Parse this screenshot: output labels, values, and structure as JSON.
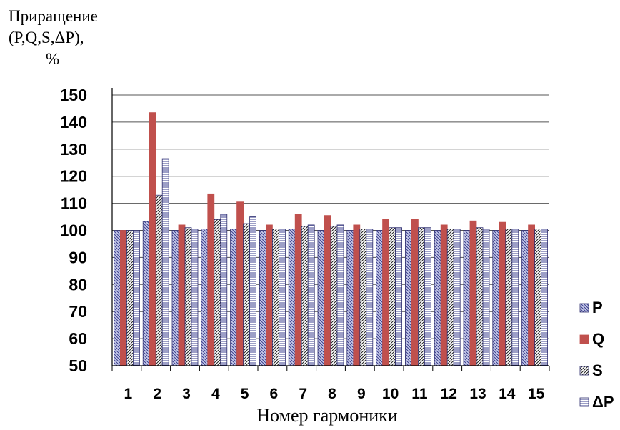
{
  "chart_data": {
    "type": "bar",
    "ylabel_lines": [
      "Приращение",
      "(P,Q,S,ΔP),",
      "%"
    ],
    "xlabel": "Номер гармоники",
    "categories": [
      "1",
      "2",
      "3",
      "4",
      "5",
      "6",
      "7",
      "8",
      "9",
      "10",
      "11",
      "12",
      "13",
      "14",
      "15"
    ],
    "ylim": [
      50,
      150
    ],
    "yticks": [
      50,
      60,
      70,
      80,
      90,
      100,
      110,
      120,
      130,
      140,
      150
    ],
    "ytick_labels": [
      "50",
      "60",
      "70",
      "80",
      "90",
      "100",
      "110",
      "120",
      "130",
      "140",
      "150"
    ],
    "grid": true,
    "legend_position": "right",
    "series": [
      {
        "name": "P",
        "color": "#b8bedf",
        "pattern": "diag-back",
        "values": [
          100,
          103.3,
          100,
          100.5,
          100.5,
          100,
          100.5,
          100,
          100,
          100,
          100,
          100,
          100,
          100,
          100
        ]
      },
      {
        "name": "Q",
        "color": "#c0504d",
        "pattern": "solid",
        "values": [
          100,
          143.5,
          102,
          113.5,
          110.5,
          102,
          106,
          105.5,
          102,
          104,
          104,
          102,
          103.5,
          103,
          102
        ]
      },
      {
        "name": "S",
        "color": "#ffffff",
        "pattern": "diag-fwd",
        "values": [
          100,
          113,
          101,
          104,
          102.5,
          100.5,
          101.5,
          101.5,
          100.5,
          101,
          101,
          100.5,
          101,
          100.5,
          100.5
        ]
      },
      {
        "name": "ΔP",
        "color": "#c8cce8",
        "pattern": "horiz",
        "values": [
          100,
          126.5,
          100.5,
          106,
          105,
          100.5,
          102,
          102,
          100.5,
          101,
          101,
          100.5,
          100.5,
          100.5,
          100.5
        ]
      }
    ]
  }
}
